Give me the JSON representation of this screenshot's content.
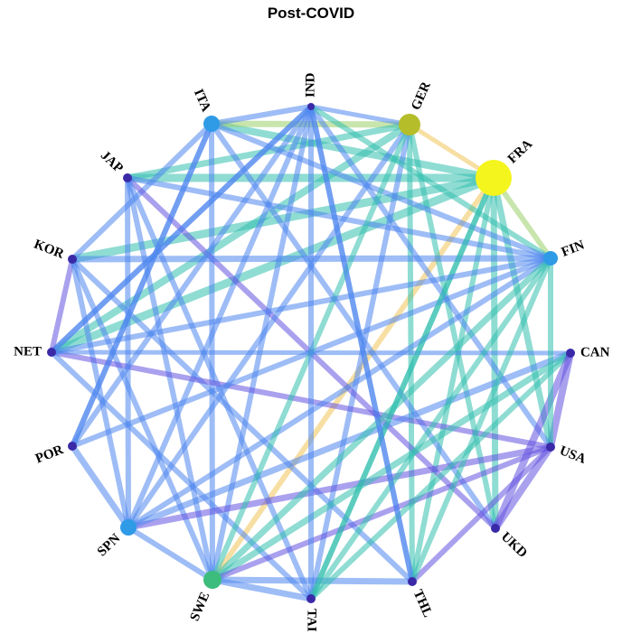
{
  "title": "Post-COVID",
  "nodes": [
    "IND",
    "GER",
    "FRA",
    "FIN",
    "CAN",
    "USA",
    "UKD",
    "THL",
    "TAI",
    "SWE",
    "SPN",
    "POR",
    "NET",
    "KOR",
    "JAP",
    "ITA"
  ]
}
